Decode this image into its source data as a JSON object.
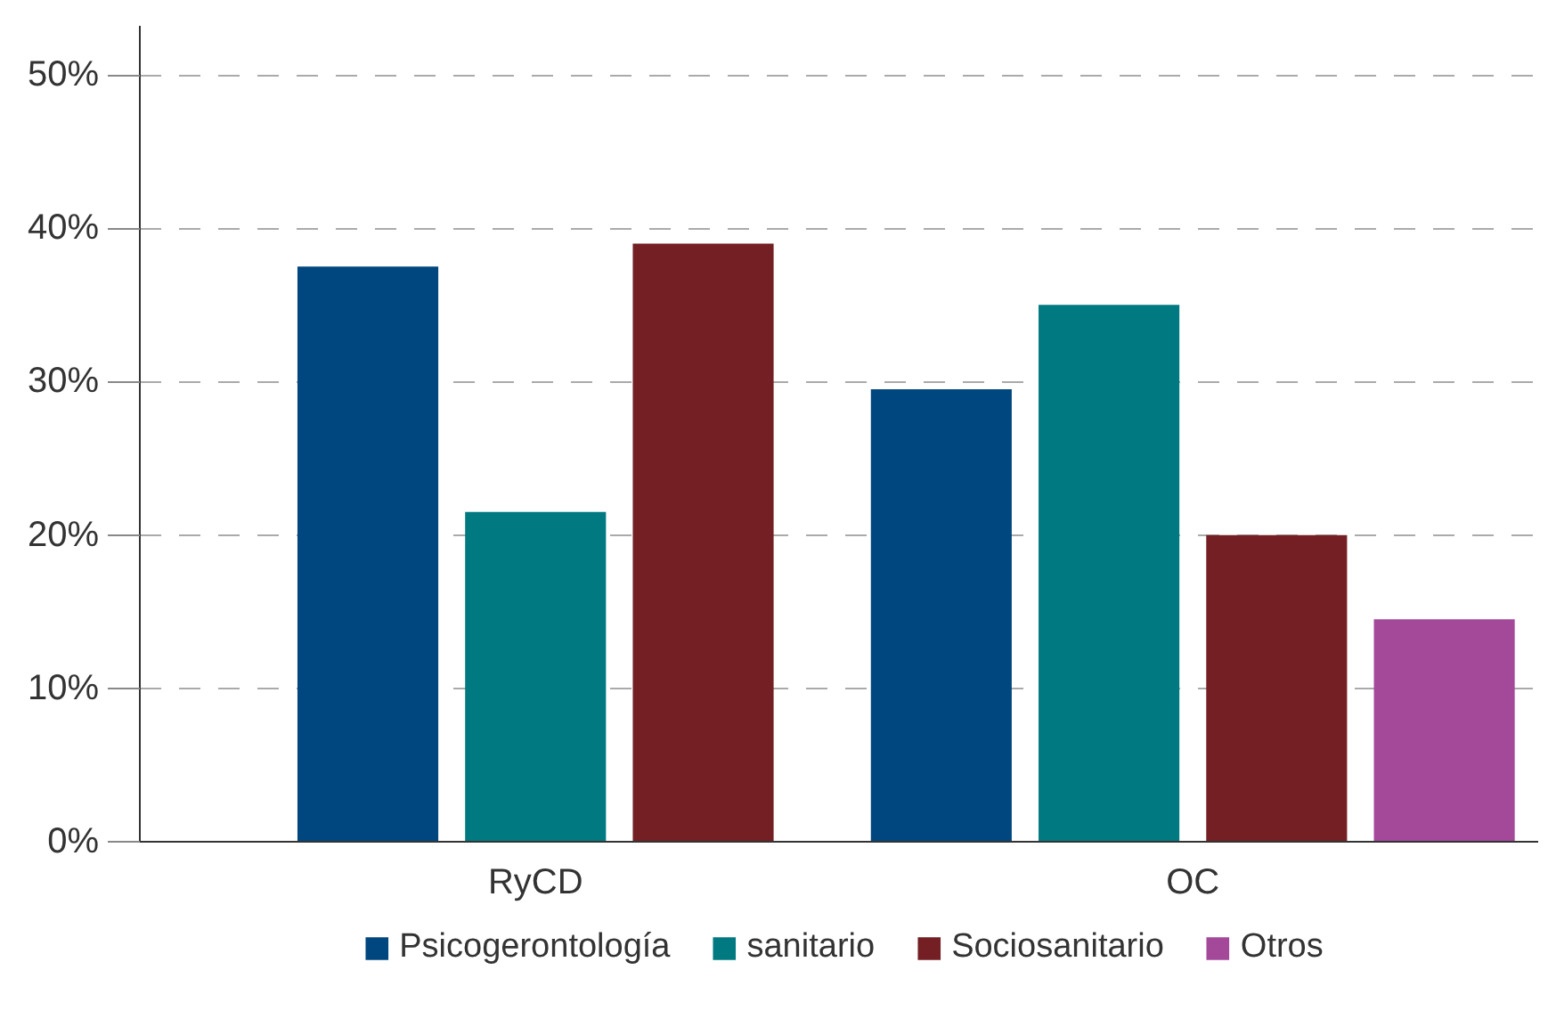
{
  "chart_data": {
    "type": "bar",
    "categories": [
      "RyCD",
      "OC"
    ],
    "series": [
      {
        "name": "Psicogerontología",
        "color": "#00477f",
        "values": [
          37.5,
          29.5
        ]
      },
      {
        "name": "sanitario",
        "color": "#007a80",
        "values": [
          21.5,
          35
        ]
      },
      {
        "name": "Sociosanitario",
        "color": "#731f24",
        "values": [
          39,
          20
        ]
      },
      {
        "name": "Otros",
        "color": "#a4489a",
        "values": [
          null,
          14.5
        ]
      }
    ],
    "ylim": [
      0,
      53.2
    ],
    "yticks": [
      {
        "value": 0,
        "label": "0%"
      },
      {
        "value": 10,
        "label": "10%"
      },
      {
        "value": 20,
        "label": "20%"
      },
      {
        "value": 30,
        "label": "30%"
      },
      {
        "value": 40,
        "label": "40%"
      },
      {
        "value": 50,
        "label": "50%"
      }
    ],
    "grid": "y",
    "legend": "bottom"
  }
}
